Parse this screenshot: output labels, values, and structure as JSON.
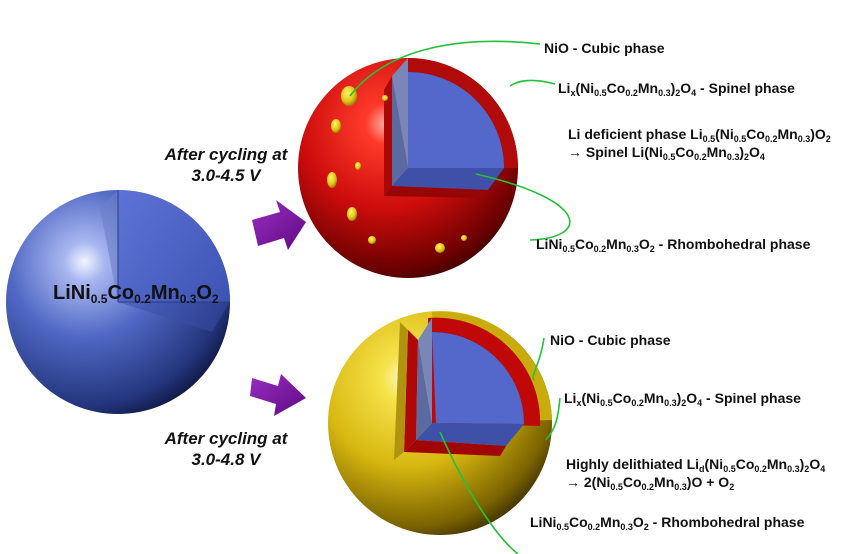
{
  "colors": {
    "pristine": "#4a64c0",
    "spinel_red": "#cc0c0c",
    "yellow": "#e8cc10",
    "core_blue": "#5466cc",
    "arrow_purple": "#7a0f9e",
    "leader_green": "#22c23a"
  },
  "pristine": {
    "label_parts": [
      "LiNi",
      "0.5",
      "Co",
      "0.2",
      "Mn",
      "0.3",
      "O",
      "2"
    ]
  },
  "cycle_top": {
    "line1": "After cycling at",
    "line2": "3.0-4.5 V"
  },
  "cycle_bottom": {
    "line1": "After cycling at",
    "line2": "3.0-4.8 V"
  },
  "top_labels": {
    "nio": "NiO - Cubic phase",
    "spinel": {
      "p1": "Li",
      "s1": "x",
      "p2": "(Ni",
      "s2": "0.5",
      "p3": "Co",
      "s3": "0.2",
      "p4": "Mn",
      "s4": "0.3",
      "p5": ")",
      "s5": "2",
      "p6": "O",
      "s6": "4",
      "p7": " - Spinel phase"
    },
    "deficient_line1": {
      "p1": "Li deficient phase Li",
      "s1": "0.5",
      "p2": "(Ni",
      "s2": "0.5",
      "p3": "Co",
      "s3": "0.2",
      "p4": "Mn",
      "s4": "0.3",
      "p5": ")O",
      "s5": "2"
    },
    "deficient_line2": {
      "p1": "→ Spinel Li(Ni",
      "s1": "0.5",
      "p2": "Co",
      "s2": "0.2",
      "p3": "Mn",
      "s3": "0.3",
      "p4": ")",
      "s4": "2",
      "p5": "O",
      "s5": "4"
    },
    "rhombo": {
      "p1": "LiNi",
      "s1": "0.5",
      "p2": "Co",
      "s2": "0.2",
      "p3": "Mn",
      "s3": "0.3",
      "p4": "O",
      "s4": "2",
      "p5": " - Rhombohedral phase"
    }
  },
  "bottom_labels": {
    "nio": "NiO - Cubic phase",
    "spinel": {
      "p1": "Li",
      "s1": "x",
      "p2": "(Ni",
      "s2": "0.5",
      "p3": "Co",
      "s3": "0.2",
      "p4": "Mn",
      "s4": "0.3",
      "p5": ")",
      "s5": "2",
      "p6": "O",
      "s6": "4",
      "p7": " - Spinel phase"
    },
    "delith_line1": {
      "p1": "Highly delithiated Li",
      "s1": "d",
      "p2": "(Ni",
      "s2": "0.5",
      "p3": "Co",
      "s3": "0.2",
      "p4": "Mn",
      "s4": "0.3",
      "p5": ")",
      "s5": "2",
      "p6": "O",
      "s6": "4"
    },
    "delith_line2": {
      "p1": "→ 2(Ni",
      "s1": "0.5",
      "p2": "Co",
      "s2": "0.2",
      "p3": "Mn",
      "s3": "0.3",
      "p4": ")O + O",
      "s4": "2"
    },
    "rhombo": {
      "p1": "LiNi",
      "s1": "0.5",
      "p2": "Co",
      "s2": "0.2",
      "p3": "Mn",
      "s3": "0.3",
      "p4": "O",
      "s4": "2",
      "p5": " - Rhombohedral phase"
    }
  }
}
